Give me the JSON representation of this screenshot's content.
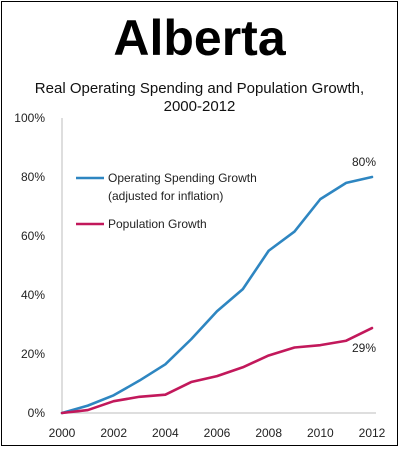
{
  "main_title": "Alberta",
  "chart_data": {
    "type": "line",
    "title": "Real Operating Spending and Population Growth,",
    "subtitle": "2000-2012",
    "x": [
      2000,
      2001,
      2002,
      2003,
      2004,
      2005,
      2006,
      2007,
      2008,
      2009,
      2010,
      2011,
      2012
    ],
    "x_ticks": [
      "2000",
      "2002",
      "2004",
      "2006",
      "2008",
      "2010",
      "2012"
    ],
    "y_ticks": [
      "0%",
      "20%",
      "40%",
      "60%",
      "80%",
      "100%"
    ],
    "xlim": [
      2000,
      2012
    ],
    "ylim": [
      0,
      100
    ],
    "grid": false,
    "legend_position": "top-left",
    "series": [
      {
        "name": "Operating Spending Growth (adjusted for inflation)",
        "legend_lines": [
          "Operating Spending Growth",
          "(adjusted for inflation)"
        ],
        "color": "#2e86c1",
        "values": [
          0,
          2.5,
          6,
          11,
          16.5,
          25,
          34.5,
          42,
          55,
          61.5,
          72.5,
          78,
          80
        ],
        "end_label": "80%"
      },
      {
        "name": "Population Growth",
        "legend_lines": [
          "Population Growth"
        ],
        "color": "#c2185b",
        "values": [
          0,
          1,
          4,
          5.5,
          6.2,
          10.5,
          12.5,
          15.5,
          19.5,
          22.2,
          23,
          24.5,
          28.8
        ],
        "end_label": "29%"
      }
    ]
  }
}
